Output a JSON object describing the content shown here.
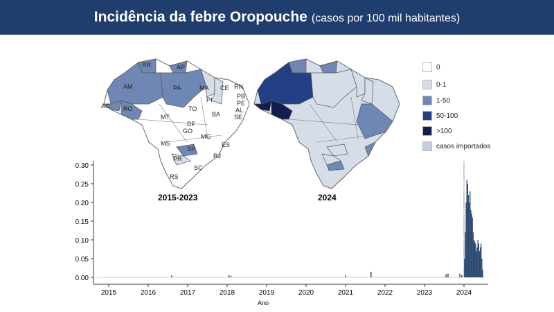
{
  "header": {
    "title": "Incidência da febre Oropouche",
    "subtitle": "(casos por 100 mil habitantes)"
  },
  "maps": [
    {
      "label": "2015-2023",
      "states": [
        "RR",
        "AP",
        "AM",
        "PA",
        "MA",
        "CE",
        "RN",
        "PB",
        "PE",
        "AL",
        "SE",
        "PI",
        "AC",
        "RO",
        "TO",
        "BA",
        "MT",
        "DF",
        "GO",
        "MG",
        "ES",
        "MS",
        "SP",
        "RJ",
        "PR",
        "SC",
        "RS"
      ]
    },
    {
      "label": "2024"
    }
  ],
  "legend": [
    {
      "label": "0",
      "color": "#ffffff"
    },
    {
      "label": "0-1",
      "color": "#d5dde9"
    },
    {
      "label": "1-50",
      "color": "#6e87b4"
    },
    {
      "label": "50-100",
      "color": "#233f86"
    },
    {
      "label": ">100",
      "color": "#101d4e"
    },
    {
      "label": "casos importados",
      "color": "#c4cedd"
    }
  ],
  "chart_data": {
    "type": "bar",
    "xlabel": "Ano",
    "ylabel": "",
    "xlim": [
      2014.8,
      2024.7
    ],
    "ylim": [
      0,
      0.31
    ],
    "xticks": [
      "2015",
      "2016",
      "2017",
      "2018",
      "2019",
      "2020",
      "2021",
      "2022",
      "2023",
      "2024"
    ],
    "yticks": [
      "0.00",
      "0.05",
      "0.10",
      "0.15",
      "0.20",
      "0.25",
      "0.30"
    ],
    "reference_line_x": 2024.0,
    "bar_color": "#2f4a72",
    "x": [
      2016.6,
      2018.05,
      2018.1,
      2021.0,
      2021.65,
      2023.55,
      2023.6,
      2023.9,
      2023.95,
      2024.02,
      2024.04,
      2024.06,
      2024.08,
      2024.1,
      2024.12,
      2024.14,
      2024.16,
      2024.18,
      2024.2,
      2024.22,
      2024.24,
      2024.26,
      2024.28,
      2024.3,
      2024.32,
      2024.34,
      2024.36,
      2024.38,
      2024.4,
      2024.42,
      2024.44,
      2024.46,
      2024.48
    ],
    "y": [
      0.005,
      0.006,
      0.004,
      0.005,
      0.015,
      0.008,
      0.01,
      0.01,
      0.006,
      0.05,
      0.12,
      0.2,
      0.26,
      0.25,
      0.22,
      0.2,
      0.23,
      0.18,
      0.17,
      0.16,
      0.12,
      0.1,
      0.095,
      0.09,
      0.07,
      0.08,
      0.1,
      0.09,
      0.07,
      0.08,
      0.09,
      0.05,
      0.02
    ]
  }
}
